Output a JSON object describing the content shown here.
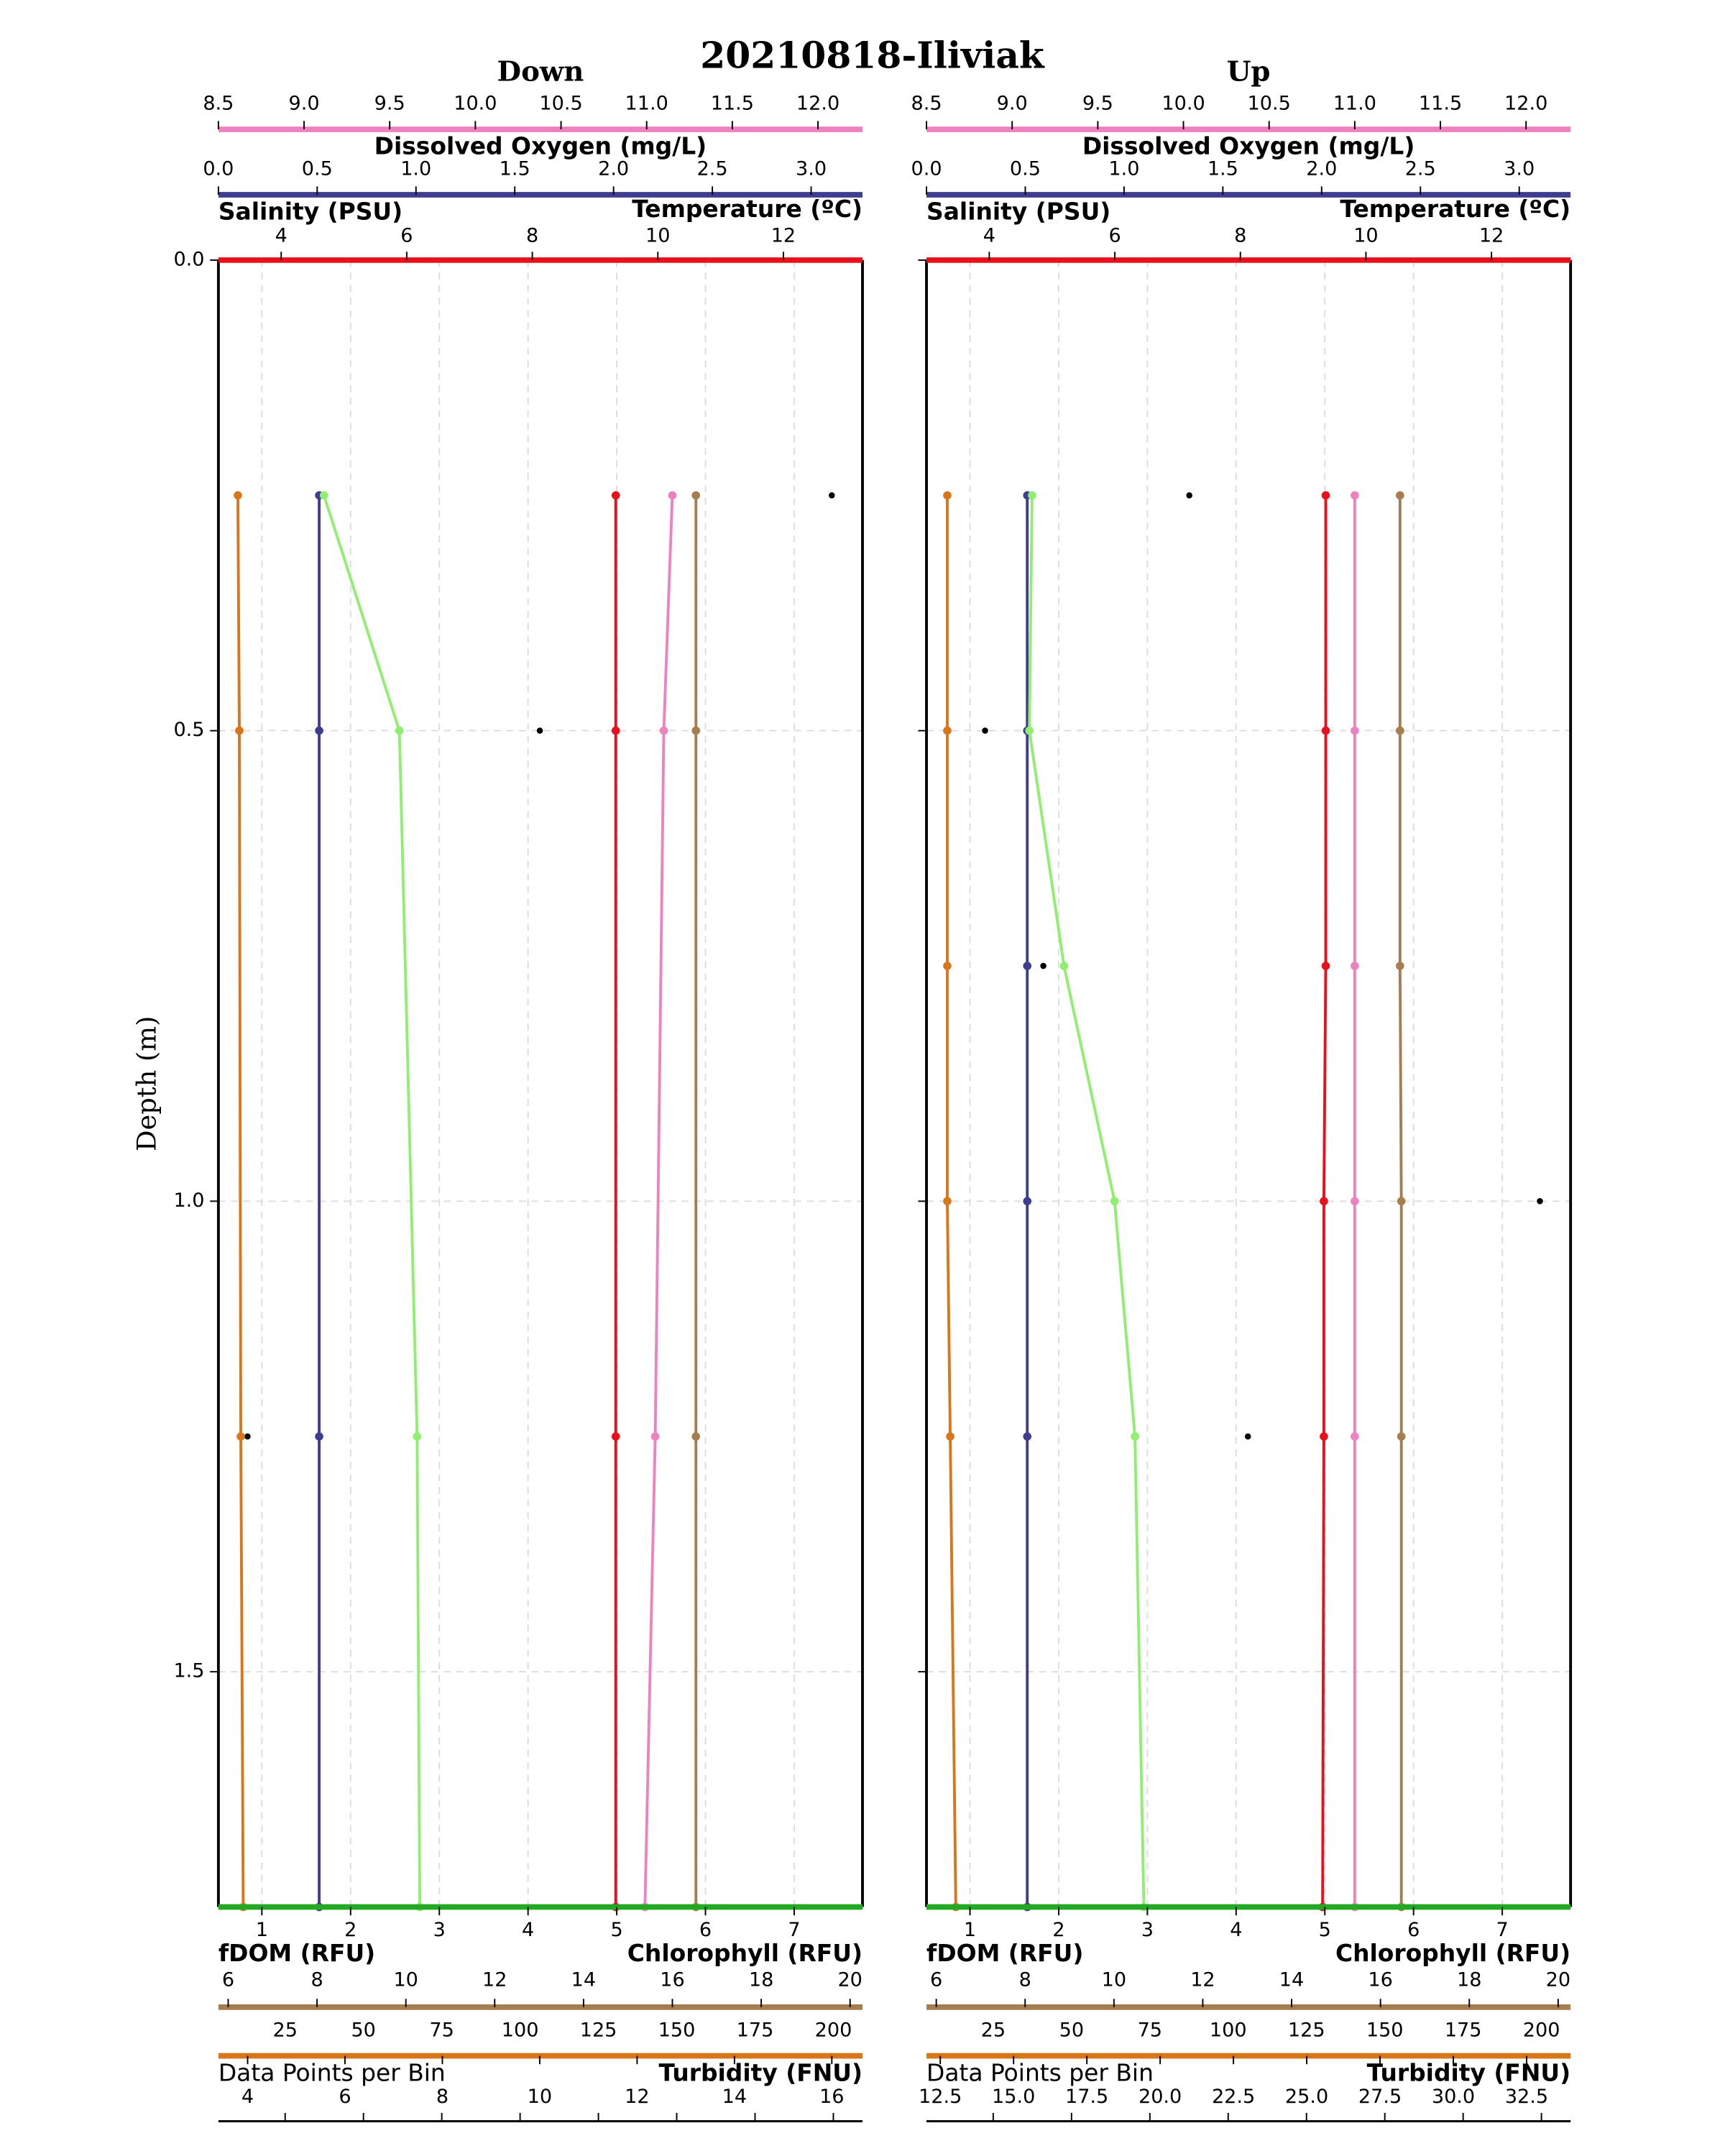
{
  "title": "20210818-Iliviak",
  "chart_data": [
    {
      "type": "line",
      "title": "Down",
      "ylabel": "Depth (m)",
      "ylim": [
        0,
        1.75
      ],
      "yticks": [
        {
          "value": 0,
          "label": "0.0"
        },
        0.5,
        {
          "value": 1,
          "label": "1.0"
        },
        1.5
      ],
      "grid": true,
      "y": [
        0.25,
        0.5,
        1.25,
        1.75
      ],
      "axes": [
        {
          "name": "Dissolved Oxygen (mg/L)",
          "color": "#ee82c0",
          "xlim": [
            8.5,
            12.26
          ],
          "xticks": [
            8.5,
            {
              "value": 9,
              "label": "9.0"
            },
            9.5,
            {
              "value": 10,
              "label": "10.0"
            },
            10.5,
            {
              "value": 11,
              "label": "11.0"
            },
            11.5,
            {
              "value": 12,
              "label": "12.0"
            }
          ]
        },
        {
          "name": "Salinity (PSU)",
          "color": "#3f3d8f",
          "xlim": [
            0,
            3.26
          ],
          "xticks": [
            {
              "value": 0,
              "label": "0.0"
            },
            0.5,
            {
              "value": 1,
              "label": "1.0"
            },
            1.5,
            {
              "value": 2,
              "label": "2.0"
            },
            2.5,
            {
              "value": 3,
              "label": "3.0"
            }
          ]
        },
        {
          "name": "Temperature (ºC)",
          "color": "#e8101a",
          "xlim": [
            3.0,
            13.26
          ],
          "xticks": [
            4,
            6,
            8,
            10,
            12
          ]
        },
        {
          "name": "Chlorophyll (RFU)",
          "color": "#22aa22",
          "xlim": [
            0.51,
            7.77
          ],
          "xticks": [
            1,
            2,
            3,
            4,
            5,
            6,
            7
          ]
        },
        {
          "name": "fDOM (RFU)",
          "color": "#a57d50",
          "xlim": [
            5.78,
            20.28
          ],
          "xticks": [
            6,
            8,
            10,
            12,
            14,
            16,
            18,
            20
          ]
        },
        {
          "name": "Data Points per Bin",
          "color": "#000000",
          "xlim": [
            3.7,
            209.3
          ],
          "xticks": [
            25,
            50,
            75,
            100,
            125,
            150,
            175,
            200
          ]
        },
        {
          "name": "Turbidity (FNU)",
          "color": "#d9761a",
          "xlim": [
            3.4,
            16.63
          ],
          "xticks": [
            4,
            6,
            8,
            10,
            12,
            14,
            16
          ]
        }
      ],
      "series": [
        {
          "axis": 5,
          "color": "#000000",
          "markers_only": true,
          "values": [
            199.5,
            106.3,
            13.0,
            null
          ]
        },
        {
          "axis": 6,
          "color": "#d9761a",
          "values": [
            3.8,
            3.83,
            3.86,
            3.91
          ]
        },
        {
          "axis": 1,
          "color": "#3f3d8f",
          "values": [
            0.51,
            0.51,
            0.51,
            0.51
          ]
        },
        {
          "axis": 3,
          "color": "#90ee70",
          "values": [
            1.7,
            2.55,
            2.75,
            2.78
          ]
        },
        {
          "axis": 2,
          "color": "#e8101a",
          "values": [
            9.33,
            9.33,
            9.33,
            9.33
          ]
        },
        {
          "axis": 0,
          "color": "#ee82c0",
          "values": [
            11.15,
            11.1,
            11.05,
            10.99
          ]
        },
        {
          "axis": 4,
          "color": "#a57d50",
          "values": [
            16.53,
            16.53,
            16.53,
            16.53
          ]
        }
      ]
    },
    {
      "type": "line",
      "title": "Up",
      "ylim": [
        0,
        1.75
      ],
      "yticks": [
        0,
        0.5,
        1,
        1.5
      ],
      "grid": true,
      "y": [
        0.25,
        0.5,
        0.75,
        1.0,
        1.25,
        1.75
      ],
      "axes": [
        {
          "name": "Dissolved Oxygen (mg/L)",
          "color": "#ee82c0",
          "xlim": [
            8.5,
            12.26
          ],
          "xticks": [
            8.5,
            {
              "value": 9,
              "label": "9.0"
            },
            9.5,
            {
              "value": 10,
              "label": "10.0"
            },
            10.5,
            {
              "value": 11,
              "label": "11.0"
            },
            11.5,
            {
              "value": 12,
              "label": "12.0"
            }
          ]
        },
        {
          "name": "Salinity (PSU)",
          "color": "#3f3d8f",
          "xlim": [
            0,
            3.26
          ],
          "xticks": [
            {
              "value": 0,
              "label": "0.0"
            },
            0.5,
            {
              "value": 1,
              "label": "1.0"
            },
            1.5,
            {
              "value": 2,
              "label": "2.0"
            },
            2.5,
            {
              "value": 3,
              "label": "3.0"
            }
          ]
        },
        {
          "name": "Temperature (ºC)",
          "color": "#e8101a",
          "xlim": [
            3.0,
            13.26
          ],
          "xticks": [
            4,
            6,
            8,
            10,
            12
          ]
        },
        {
          "name": "Chlorophyll (RFU)",
          "color": "#22aa22",
          "xlim": [
            0.51,
            7.77
          ],
          "xticks": [
            1,
            2,
            3,
            4,
            5,
            6,
            7
          ]
        },
        {
          "name": "fDOM (RFU)",
          "color": "#a57d50",
          "xlim": [
            5.78,
            20.28
          ],
          "xticks": [
            6,
            8,
            10,
            12,
            14,
            16,
            18,
            20
          ]
        },
        {
          "name": "Data Points per Bin",
          "color": "#000000",
          "xlim": [
            3.7,
            209.3
          ],
          "xticks": [
            25,
            50,
            75,
            100,
            125,
            150,
            175,
            200
          ]
        },
        {
          "name": "Turbidity (FNU)",
          "color": "#d9761a",
          "xlim": [
            12.03,
            34.0
          ],
          "xticks": [
            12.5,
            {
              "value": 15,
              "label": "15.0"
            },
            17.5,
            {
              "value": 20,
              "label": "20.0"
            },
            22.5,
            {
              "value": 25,
              "label": "25.0"
            },
            27.5,
            {
              "value": 30,
              "label": "30.0"
            },
            32.5
          ]
        }
      ],
      "series": [
        {
          "axis": 5,
          "color": "#000000",
          "markers_only": true,
          "values": [
            87.6,
            22.4,
            41.0,
            199.5,
            106.3,
            null
          ]
        },
        {
          "axis": 6,
          "color": "#d9761a",
          "values": [
            12.74,
            12.74,
            12.74,
            12.74,
            12.84,
            13.03
          ]
        },
        {
          "axis": 1,
          "color": "#3f3d8f",
          "values": [
            0.51,
            0.51,
            0.51,
            0.51,
            0.51,
            0.51
          ]
        },
        {
          "axis": 3,
          "color": "#90ee70",
          "values": [
            1.7,
            1.67,
            2.06,
            2.63,
            2.86,
            2.96
          ]
        },
        {
          "axis": 2,
          "color": "#e8101a",
          "values": [
            9.36,
            9.36,
            9.36,
            9.33,
            9.33,
            9.31
          ]
        },
        {
          "axis": 0,
          "color": "#ee82c0",
          "values": [
            11.0,
            11.0,
            11.0,
            11.0,
            11.0,
            11.0
          ]
        },
        {
          "axis": 4,
          "color": "#a57d50",
          "values": [
            16.44,
            16.44,
            16.44,
            16.47,
            16.47,
            16.47
          ]
        }
      ]
    }
  ]
}
